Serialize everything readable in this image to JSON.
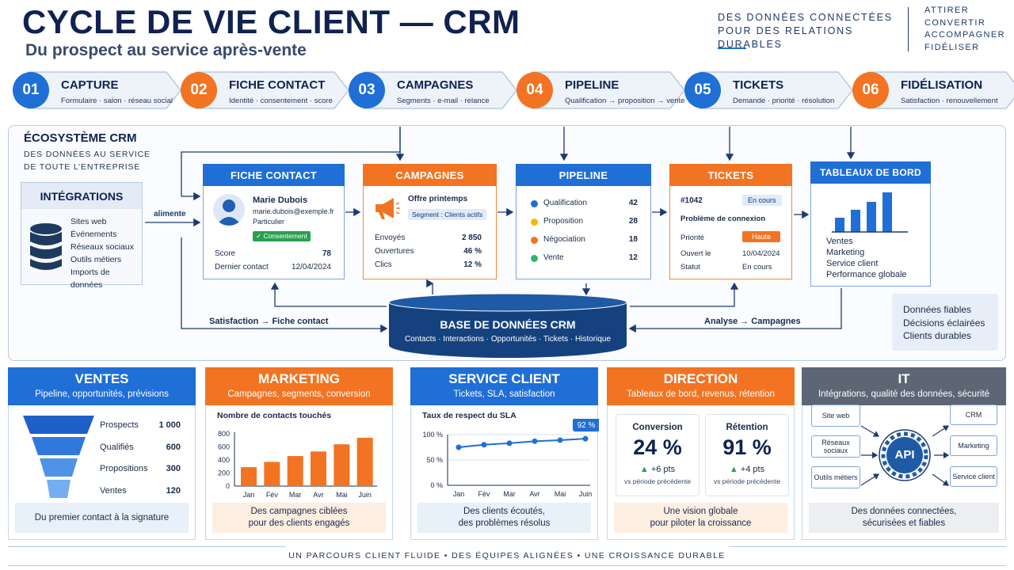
{
  "header": {
    "title": "CYCLE DE VIE CLIENT — CRM",
    "subtitle": "Du prospect au service après-vente",
    "tagline_1": "DES DONNÉES CONNECTÉES",
    "tagline_2": "POUR DES RELATIONS DURABLES",
    "actions": [
      "ATTIRER",
      "CONVERTIR",
      "ACCOMPAGNER",
      "FIDÉLISER"
    ]
  },
  "steps": [
    {
      "num": "01",
      "title": "CAPTURE",
      "sub": "Formulaire · salon · réseau social",
      "color": "#1f6fd6"
    },
    {
      "num": "02",
      "title": "FICHE CONTACT",
      "sub": "Identité · consentement · score",
      "color": "#f27422"
    },
    {
      "num": "03",
      "title": "CAMPAGNES",
      "sub": "Segments · e-mail · relance",
      "color": "#1f6fd6"
    },
    {
      "num": "04",
      "title": "PIPELINE",
      "sub": "Qualification → proposition → vente",
      "color": "#f27422"
    },
    {
      "num": "05",
      "title": "TICKETS",
      "sub": "Demande · priorité · résolution",
      "color": "#1f6fd6"
    },
    {
      "num": "06",
      "title": "FIDÉLISATION",
      "sub": "Satisfaction · renouvellement",
      "color": "#f27422"
    }
  ],
  "eco": {
    "title": "ÉCOSYSTÈME CRM",
    "sub_1": "DES DONNÉES AU SERVICE",
    "sub_2": "DE TOUTE L’ENTREPRISE",
    "feeds": "alimente",
    "loop_left": "Satisfaction → Fiche contact",
    "loop_right": "Analyse → Campagnes",
    "benefits": [
      "Données fiables",
      "Décisions éclairées",
      "Clients durables"
    ]
  },
  "integrations": {
    "title": "INTÉGRATIONS",
    "items": [
      "Sites web",
      "Événements",
      "Réseaux sociaux",
      "Outils métiers",
      "Imports de données"
    ]
  },
  "contact": {
    "title": "FICHE CONTACT",
    "name": "Marie Dubois",
    "email": "marie.dubois@exemple.fr",
    "type": "Particulier",
    "consent": "✓ Consentement",
    "score_label": "Score",
    "score": "78",
    "last_label": "Dernier contact",
    "last": "12/04/2024"
  },
  "campaigns": {
    "title": "CAMPAGNES",
    "offer": "Offre printemps",
    "segment": "Segment : Clients actifs",
    "rows": [
      {
        "label": "Envoyés",
        "value": "2 850"
      },
      {
        "label": "Ouvertures",
        "value": "46 %"
      },
      {
        "label": "Clics",
        "value": "12 %"
      }
    ]
  },
  "pipeline": {
    "title": "PIPELINE",
    "rows": [
      {
        "label": "Qualification",
        "value": "42",
        "color": "#1f6fd6"
      },
      {
        "label": "Proposition",
        "value": "28",
        "color": "#f5b800"
      },
      {
        "label": "Négociation",
        "value": "18",
        "color": "#f27422"
      },
      {
        "label": "Vente",
        "value": "12",
        "color": "#34b36b"
      }
    ]
  },
  "tickets": {
    "title": "TICKETS",
    "id": "#1042",
    "state_badge": "En cours",
    "problem": "Problème de connexion",
    "prio_label": "Priorité",
    "prio": "Haute",
    "opened_label": "Ouvert le",
    "opened": "10/04/2024",
    "status_label": "Statut",
    "status": "En cours"
  },
  "dashboards": {
    "title": "TABLEAUX DE BORD",
    "items": [
      "Ventes",
      "Marketing",
      "Service client",
      "Performance globale"
    ]
  },
  "database": {
    "title": "BASE DE DONNÉES CRM",
    "sub": "Contacts · Interactions · Opportunités · Tickets · Historique"
  },
  "sales": {
    "title": "VENTES",
    "sub": "Pipeline, opportunités, prévisions",
    "funnel": [
      {
        "label": "Prospects",
        "value": "1 000"
      },
      {
        "label": "Qualifiés",
        "value": "600"
      },
      {
        "label": "Propositions",
        "value": "300"
      },
      {
        "label": "Ventes",
        "value": "120"
      }
    ],
    "footer": "Du premier contact à la signature"
  },
  "marketing": {
    "title": "MARKETING",
    "sub": "Campagnes, segments, conversion",
    "footer": "Des campagnes ciblées\npour des clients engagés"
  },
  "service": {
    "title": "SERVICE CLIENT",
    "sub": "Tickets, SLA, satisfaction",
    "callout": "92 %",
    "footer": "Des clients écoutés,\ndes problèmes résolus"
  },
  "direction": {
    "title": "DIRECTION",
    "sub": "Tableaux de bord, revenus, rétention",
    "kpis": [
      {
        "label": "Conversion",
        "value": "24 %",
        "delta": "+6 pts",
        "note": "vs période précédente"
      },
      {
        "label": "Rétention",
        "value": "91 %",
        "delta": "+4 pts",
        "note": "vs période précédente"
      }
    ],
    "footer": "Une vision globale\npour piloter la croissance"
  },
  "it": {
    "title": "IT",
    "sub": "Intégrations, qualité des données, sécurité",
    "hub": "API",
    "left": [
      "Site web",
      "Réseaux sociaux",
      "Outils métiers"
    ],
    "right": [
      "CRM",
      "Marketing",
      "Service client"
    ],
    "footer": "Des données connectées,\nsécurisées et fiables"
  },
  "footer": "UN PARCOURS CLIENT FLUIDE   •   DES ÉQUIPES ALIGNÉES   •   UNE CROISSANCE DURABLE",
  "chart_data": [
    {
      "type": "bar",
      "title": "Nombre de contacts touchés",
      "categories": [
        "Jan",
        "Fév",
        "Mar",
        "Avr",
        "Mai",
        "Juin"
      ],
      "values": [
        290,
        370,
        460,
        530,
        640,
        740
      ],
      "ylim": [
        0,
        800
      ],
      "yticks": [
        0,
        200,
        400,
        600,
        800
      ]
    },
    {
      "type": "line",
      "title": "Taux de respect du SLA",
      "categories": [
        "Jan",
        "Fév",
        "Mar",
        "Avr",
        "Mai",
        "Juin"
      ],
      "values": [
        75,
        80,
        83,
        87,
        89,
        92
      ],
      "ylim": [
        0,
        100
      ],
      "yticks": [
        "0 %",
        "50 %",
        "100 %"
      ]
    }
  ]
}
